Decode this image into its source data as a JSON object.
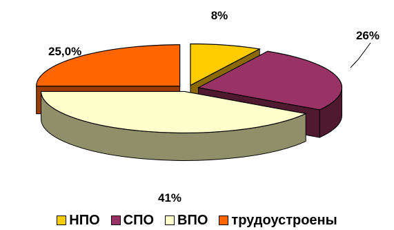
{
  "chart_data": {
    "type": "pie",
    "style": "3d-exploded",
    "categories": [
      "НПО",
      "СПО",
      "ВПО",
      "трудоустроены"
    ],
    "values": [
      8,
      26,
      41,
      25
    ],
    "data_labels": [
      "8%",
      "26%",
      "41%",
      "25,0%"
    ],
    "colors": [
      "#FFCC00",
      "#993366",
      "#FFFFCC",
      "#FF6600"
    ],
    "side_colors": [
      "#8A6A00",
      "#4F1A30",
      "#8F8F6A",
      "#9A3B00"
    ],
    "legend_position": "bottom"
  }
}
